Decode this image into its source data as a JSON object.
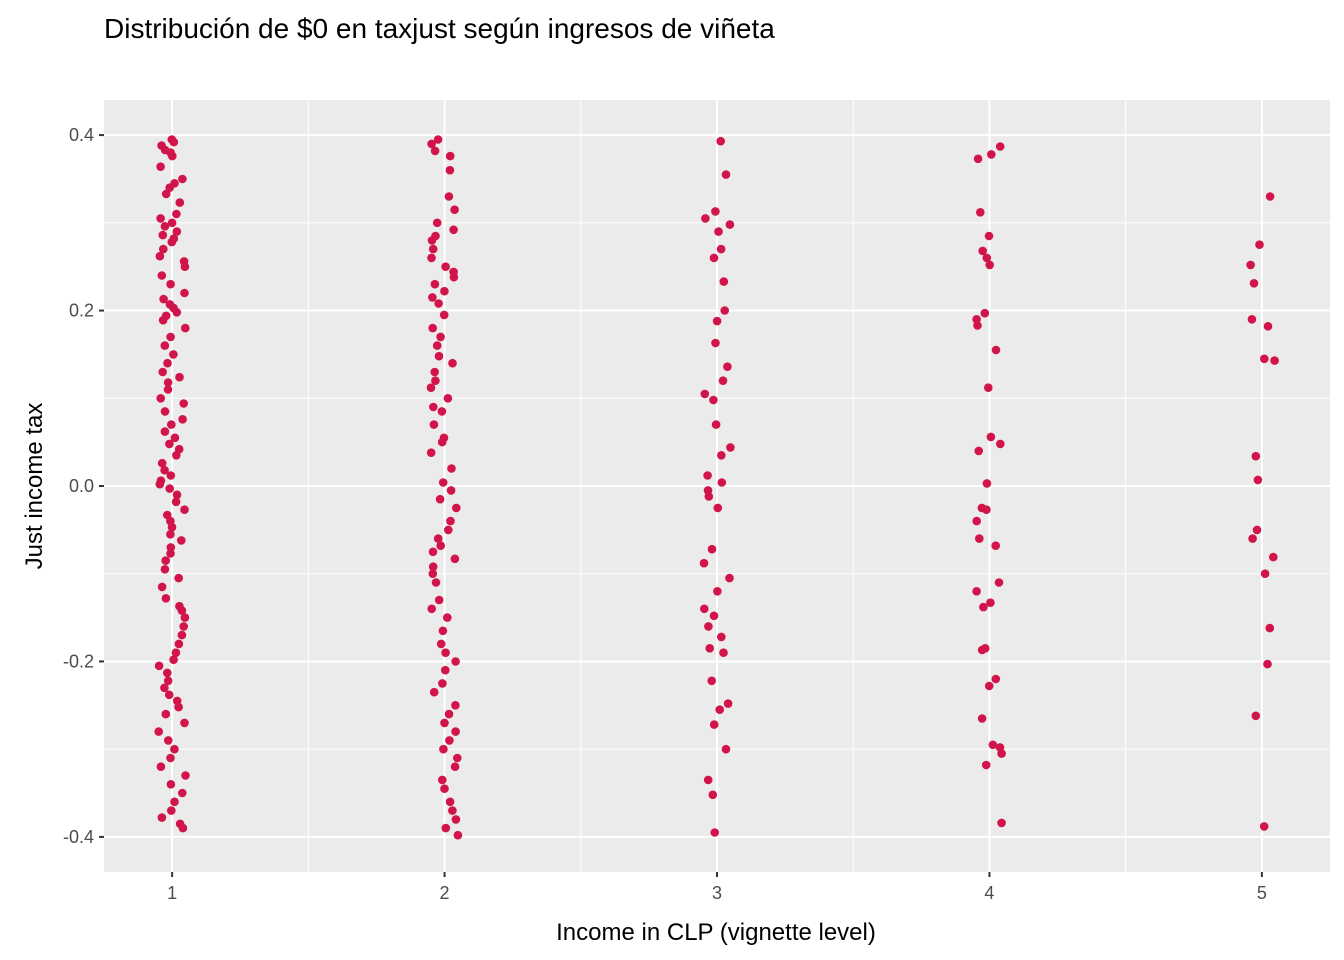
{
  "chart_data": {
    "type": "scatter",
    "title": "Distribución de $0 en taxjust según ingresos de viñeta",
    "xlabel": "Income in CLP (vignette level)",
    "ylabel": "Just income tax",
    "x_ticks": [
      "1",
      "2",
      "3",
      "4",
      "5"
    ],
    "y_ticks": [
      "-0.4",
      "-0.2",
      "0.0",
      "0.2",
      "0.4"
    ],
    "xlim": [
      0.75,
      5.25
    ],
    "ylim": [
      -0.44,
      0.44
    ],
    "grid": true,
    "point_color": "#d1154a",
    "panel_color": "#ebebeb",
    "series": [
      {
        "x_level": 1,
        "y": [
          0.395,
          0.392,
          0.388,
          0.383,
          0.38,
          0.376,
          0.364,
          0.35,
          0.345,
          0.34,
          0.333,
          0.323,
          0.31,
          0.305,
          0.3,
          0.296,
          0.29,
          0.286,
          0.282,
          0.278,
          0.27,
          0.262,
          0.256,
          0.25,
          0.24,
          0.23,
          0.22,
          0.213,
          0.207,
          0.203,
          0.198,
          0.194,
          0.189,
          0.18,
          0.17,
          0.16,
          0.15,
          0.14,
          0.13,
          0.124,
          0.118,
          0.11,
          0.1,
          0.094,
          0.085,
          0.076,
          0.07,
          0.062,
          0.055,
          0.048,
          0.042,
          0.035,
          0.026,
          0.018,
          0.012,
          0.006,
          0.002,
          -0.003,
          -0.01,
          -0.018,
          -0.027,
          -0.033,
          -0.04,
          -0.047,
          -0.055,
          -0.062,
          -0.07,
          -0.077,
          -0.085,
          -0.095,
          -0.105,
          -0.115,
          -0.128,
          -0.137,
          -0.142,
          -0.15,
          -0.16,
          -0.17,
          -0.18,
          -0.19,
          -0.198,
          -0.205,
          -0.213,
          -0.222,
          -0.23,
          -0.238,
          -0.245,
          -0.252,
          -0.26,
          -0.27,
          -0.28,
          -0.29,
          -0.3,
          -0.31,
          -0.32,
          -0.33,
          -0.34,
          -0.35,
          -0.36,
          -0.37,
          -0.378,
          -0.385,
          -0.39
        ]
      },
      {
        "x_level": 2,
        "y": [
          0.395,
          0.39,
          0.382,
          0.376,
          0.36,
          0.33,
          0.315,
          0.3,
          0.292,
          0.285,
          0.28,
          0.27,
          0.26,
          0.25,
          0.244,
          0.238,
          0.23,
          0.222,
          0.215,
          0.208,
          0.195,
          0.18,
          0.17,
          0.16,
          0.148,
          0.14,
          0.13,
          0.12,
          0.112,
          0.1,
          0.09,
          0.085,
          0.07,
          0.055,
          0.05,
          0.038,
          0.02,
          0.004,
          -0.005,
          -0.015,
          -0.025,
          -0.04,
          -0.05,
          -0.06,
          -0.068,
          -0.075,
          -0.083,
          -0.092,
          -0.1,
          -0.11,
          -0.13,
          -0.14,
          -0.15,
          -0.165,
          -0.18,
          -0.19,
          -0.2,
          -0.21,
          -0.225,
          -0.235,
          -0.25,
          -0.26,
          -0.27,
          -0.28,
          -0.29,
          -0.3,
          -0.31,
          -0.32,
          -0.335,
          -0.345,
          -0.36,
          -0.37,
          -0.38,
          -0.39,
          -0.398
        ]
      },
      {
        "x_level": 3,
        "y": [
          0.393,
          0.355,
          0.313,
          0.305,
          0.298,
          0.29,
          0.27,
          0.26,
          0.233,
          0.2,
          0.188,
          0.163,
          0.136,
          0.12,
          0.105,
          0.098,
          0.07,
          0.044,
          0.035,
          0.012,
          0.004,
          -0.005,
          -0.012,
          -0.025,
          -0.072,
          -0.088,
          -0.105,
          -0.12,
          -0.14,
          -0.148,
          -0.16,
          -0.172,
          -0.185,
          -0.19,
          -0.222,
          -0.248,
          -0.255,
          -0.272,
          -0.3,
          -0.335,
          -0.352,
          -0.395
        ]
      },
      {
        "x_level": 4,
        "y": [
          0.387,
          0.378,
          0.373,
          0.312,
          0.285,
          0.268,
          0.26,
          0.252,
          0.197,
          0.19,
          0.183,
          0.155,
          0.112,
          0.056,
          0.048,
          0.04,
          0.003,
          -0.025,
          -0.027,
          -0.04,
          -0.06,
          -0.068,
          -0.11,
          -0.12,
          -0.133,
          -0.138,
          -0.185,
          -0.187,
          -0.22,
          -0.228,
          -0.265,
          -0.295,
          -0.298,
          -0.305,
          -0.318,
          -0.384
        ]
      },
      {
        "x_level": 5,
        "y": [
          0.33,
          0.275,
          0.252,
          0.231,
          0.19,
          0.182,
          0.145,
          0.143,
          0.034,
          0.007,
          -0.05,
          -0.06,
          -0.081,
          -0.1,
          -0.162,
          -0.203,
          -0.262,
          -0.388
        ]
      }
    ]
  }
}
